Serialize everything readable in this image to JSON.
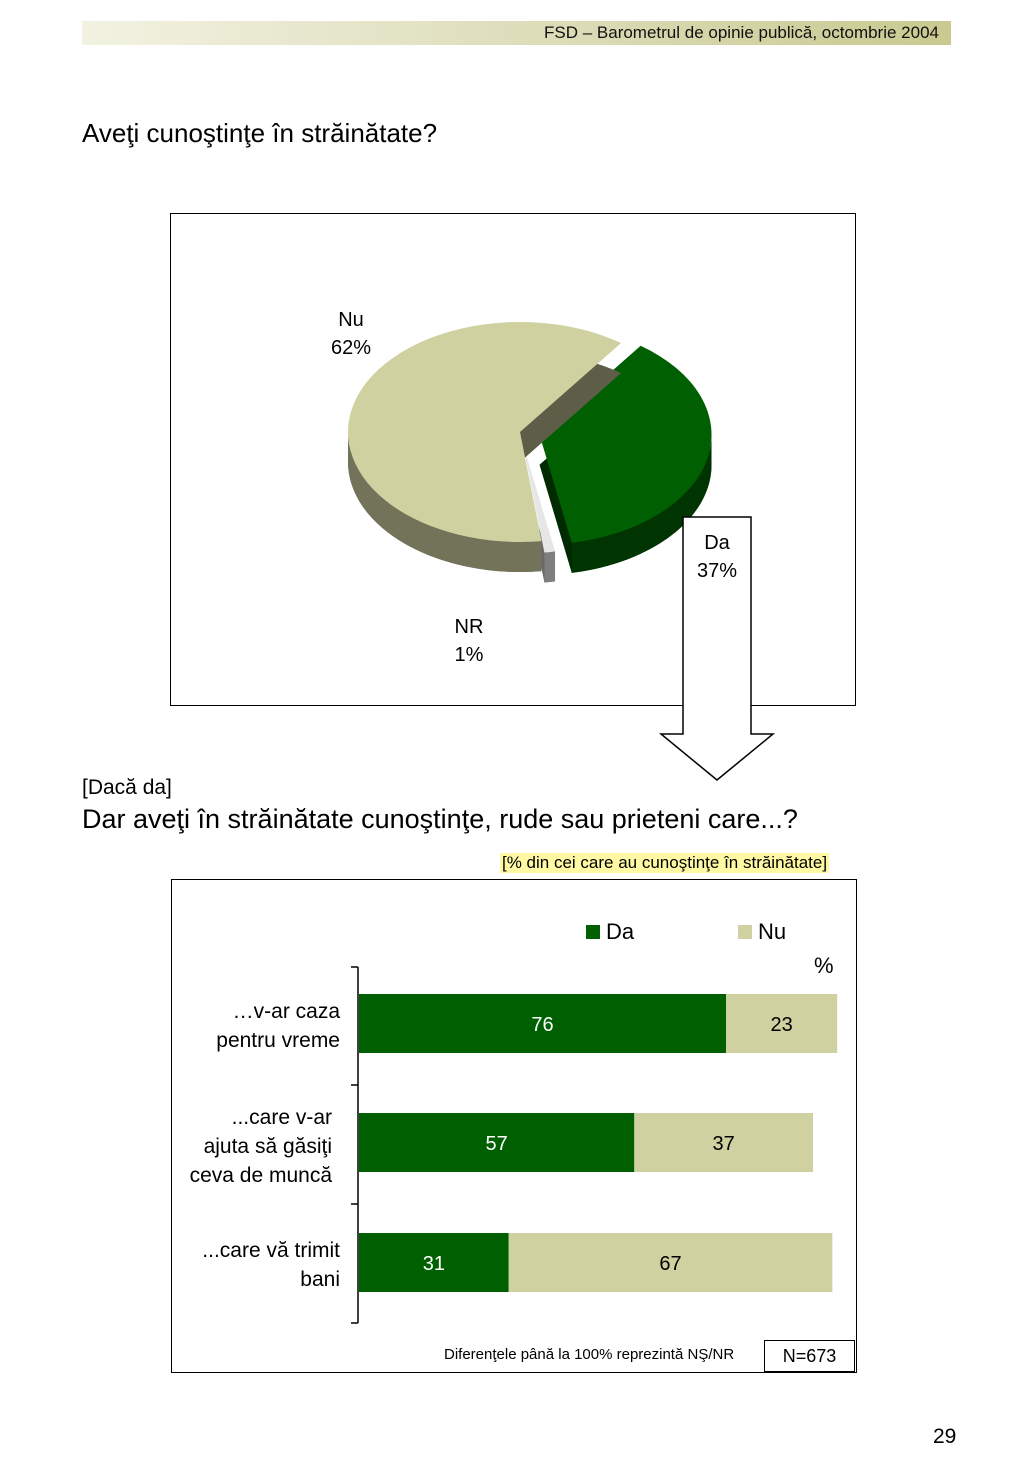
{
  "header": {
    "text": "FSD  –  Barometrul de opinie publică, octombrie 2004"
  },
  "page_number": "29",
  "colors": {
    "da": "#005f00",
    "nu": "#d0d1a1",
    "nr": "#e6e6e6"
  },
  "chart_data": [
    {
      "type": "pie",
      "title": "Aveţi cunoştinţe în străinătate?",
      "slices": [
        {
          "name": "Nu",
          "value": 62,
          "label": "62%"
        },
        {
          "name": "Da",
          "value": 37,
          "label": "37%"
        },
        {
          "name": "NR",
          "value": 1,
          "label": "1%"
        }
      ]
    },
    {
      "type": "bar",
      "orientation": "horizontal",
      "stacked": true,
      "pre_title": "[Dacă da]",
      "title": "Dar aveţi în străinătate cunoştinţe, rude sau prieteni care...?",
      "subset_note": "[% din cei care au cunoştinţe în străinătate]",
      "unit": "%",
      "xlim": [
        0,
        100
      ],
      "legend": [
        "Da",
        "Nu"
      ],
      "legend_placement": "top-right",
      "categories": [
        [
          "…v-ar caza",
          "pentru  vreme"
        ],
        [
          "...care v-ar",
          "ajuta să găsiţi",
          "ceva de muncă"
        ],
        [
          "...care vă trimit",
          "bani"
        ]
      ],
      "series": [
        {
          "name": "Da",
          "values": [
            76,
            57,
            31
          ]
        },
        {
          "name": "Nu",
          "values": [
            23,
            37,
            67
          ]
        }
      ],
      "footnote": "Diferenţele până la 100% reprezintă NŞ/NR",
      "sample": "N=673"
    }
  ]
}
